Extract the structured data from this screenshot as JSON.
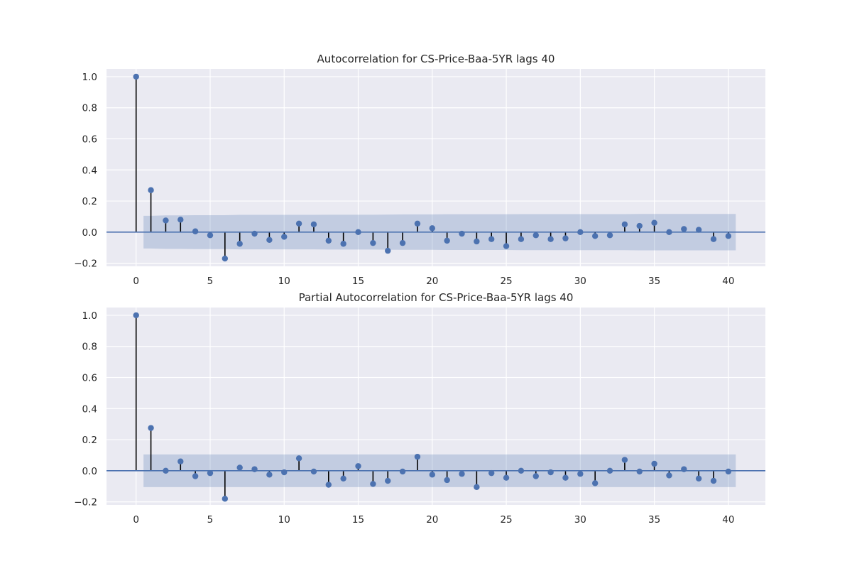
{
  "chart_data": [
    {
      "type": "stem",
      "title": "Autocorrelation for CS-Price-Baa-5YR lags 40",
      "xlabel": "",
      "ylabel": "",
      "xlim": [
        -2,
        42.5
      ],
      "ylim": [
        -0.22,
        1.05
      ],
      "xticks": [
        "0",
        "5",
        "10",
        "15",
        "20",
        "25",
        "30",
        "35",
        "40"
      ],
      "yticks": [
        "−0.2",
        "0.0",
        "0.2",
        "0.4",
        "0.6",
        "0.8",
        "1.0"
      ],
      "grid": true,
      "lags": [
        0,
        1,
        2,
        3,
        4,
        5,
        6,
        7,
        8,
        9,
        10,
        11,
        12,
        13,
        14,
        15,
        16,
        17,
        18,
        19,
        20,
        21,
        22,
        23,
        24,
        25,
        26,
        27,
        28,
        29,
        30,
        31,
        32,
        33,
        34,
        35,
        36,
        37,
        38,
        39,
        40
      ],
      "values": [
        1.0,
        0.27,
        0.075,
        0.08,
        0.005,
        -0.02,
        -0.17,
        -0.075,
        -0.01,
        -0.05,
        -0.03,
        0.055,
        0.05,
        -0.055,
        -0.075,
        0.0,
        -0.07,
        -0.12,
        -0.07,
        0.055,
        0.025,
        -0.055,
        -0.01,
        -0.06,
        -0.045,
        -0.09,
        -0.045,
        -0.02,
        -0.045,
        -0.04,
        0.0,
        -0.025,
        -0.02,
        0.05,
        0.04,
        0.06,
        0.0,
        0.02,
        0.015,
        -0.045,
        -0.025
      ],
      "confint_upper": [
        0.105,
        0.105,
        0.108,
        0.108,
        0.109,
        0.109,
        0.109,
        0.111,
        0.111,
        0.111,
        0.111,
        0.111,
        0.111,
        0.112,
        0.112,
        0.112,
        0.112,
        0.113,
        0.114,
        0.114,
        0.114,
        0.115,
        0.115,
        0.115,
        0.115,
        0.115,
        0.116,
        0.116,
        0.116,
        0.116,
        0.116,
        0.116,
        0.116,
        0.116,
        0.117,
        0.117,
        0.117,
        0.117,
        0.117,
        0.117,
        0.117
      ]
    },
    {
      "type": "stem",
      "title": "Partial Autocorrelation for CS-Price-Baa-5YR lags 40",
      "xlabel": "",
      "ylabel": "",
      "xlim": [
        -2,
        42.5
      ],
      "ylim": [
        -0.22,
        1.05
      ],
      "xticks": [
        "0",
        "5",
        "10",
        "15",
        "20",
        "25",
        "30",
        "35",
        "40"
      ],
      "yticks": [
        "−0.2",
        "0.0",
        "0.2",
        "0.4",
        "0.6",
        "0.8",
        "1.0"
      ],
      "grid": true,
      "lags": [
        0,
        1,
        2,
        3,
        4,
        5,
        6,
        7,
        8,
        9,
        10,
        11,
        12,
        13,
        14,
        15,
        16,
        17,
        18,
        19,
        20,
        21,
        22,
        23,
        24,
        25,
        26,
        27,
        28,
        29,
        30,
        31,
        32,
        33,
        34,
        35,
        36,
        37,
        38,
        39,
        40
      ],
      "values": [
        1.0,
        0.275,
        0.0,
        0.06,
        -0.035,
        -0.015,
        -0.18,
        0.02,
        0.01,
        -0.025,
        -0.01,
        0.08,
        -0.005,
        -0.09,
        -0.05,
        0.03,
        -0.085,
        -0.065,
        -0.005,
        0.09,
        -0.025,
        -0.06,
        -0.02,
        -0.105,
        -0.015,
        -0.045,
        0.0,
        -0.035,
        -0.01,
        -0.045,
        -0.02,
        -0.08,
        0.0,
        0.07,
        -0.005,
        0.045,
        -0.03,
        0.01,
        -0.05,
        -0.065,
        -0.005
      ],
      "confint_upper": [
        0.105,
        0.105,
        0.105,
        0.105,
        0.105,
        0.105,
        0.105,
        0.105,
        0.105,
        0.105,
        0.105,
        0.105,
        0.105,
        0.105,
        0.105,
        0.105,
        0.105,
        0.105,
        0.105,
        0.105,
        0.105,
        0.105,
        0.105,
        0.105,
        0.105,
        0.105,
        0.105,
        0.105,
        0.105,
        0.105,
        0.105,
        0.105,
        0.105,
        0.105,
        0.105,
        0.105,
        0.105,
        0.105,
        0.105,
        0.105,
        0.105
      ]
    }
  ],
  "colors": {
    "axes_background": "#EAEAF2",
    "grid": "#FFFFFF",
    "marker": "#4C72B0",
    "stem": "#000000",
    "zero_line": "#4C72B0",
    "confidence_band": "#4C72B0"
  }
}
